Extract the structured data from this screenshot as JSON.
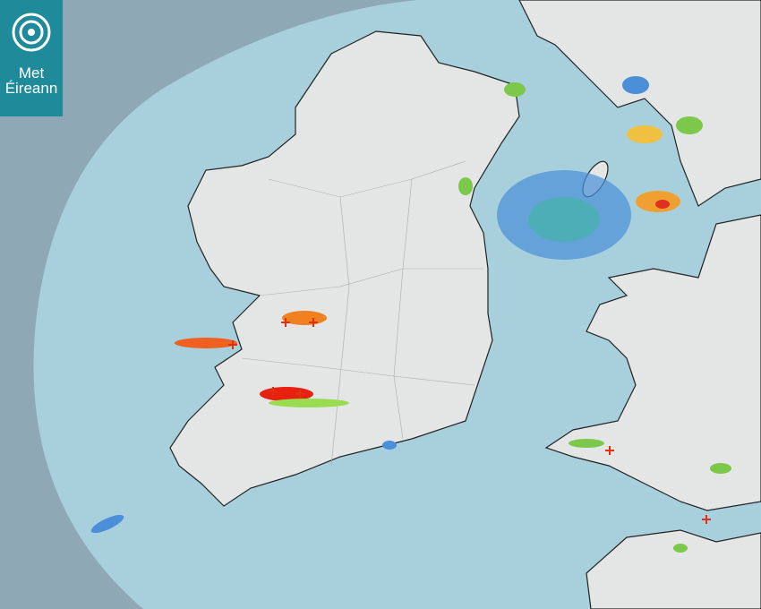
{
  "logo": {
    "line1": "Met",
    "line2": "Éireann"
  }
}
